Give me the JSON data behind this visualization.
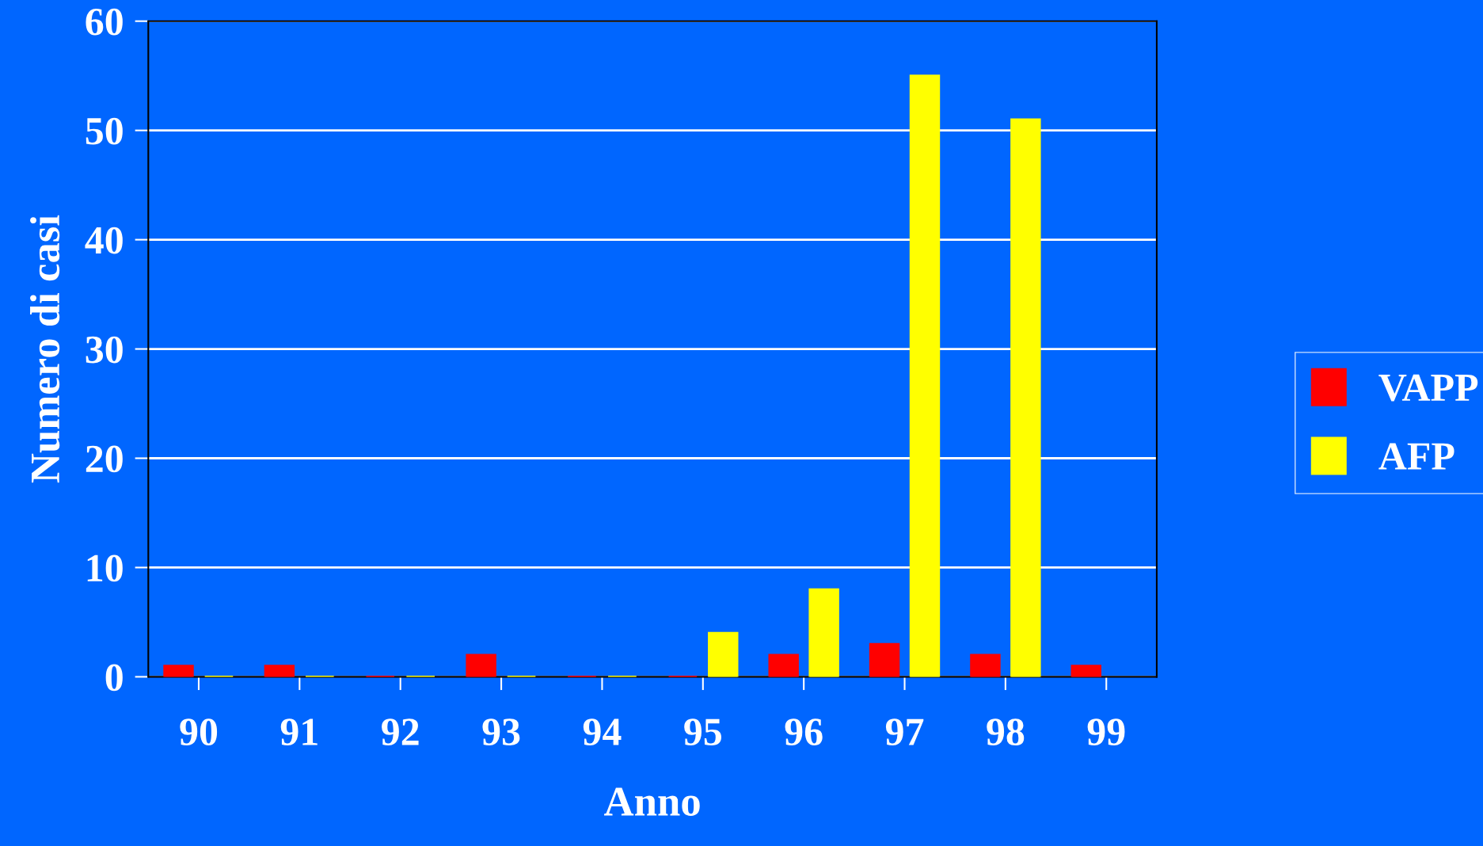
{
  "chart_data": {
    "type": "bar",
    "xlabel": "Anno",
    "ylabel": "Numero di casi",
    "categories": [
      "90",
      "91",
      "92",
      "93",
      "94",
      "95",
      "96",
      "97",
      "98",
      "99"
    ],
    "series": [
      {
        "name": "VAPP",
        "color": "#ff0000",
        "values": [
          1,
          1,
          0,
          2,
          0,
          0,
          2,
          3,
          2,
          1
        ]
      },
      {
        "name": "AFP",
        "color": "#ffff00",
        "values": [
          0,
          0,
          0,
          0,
          0,
          4,
          8,
          55,
          51,
          null
        ]
      }
    ],
    "ylim": [
      0,
      60
    ],
    "yticks": [
      0,
      10,
      20,
      30,
      40,
      50,
      60
    ],
    "grid": "y",
    "legend": "right"
  }
}
